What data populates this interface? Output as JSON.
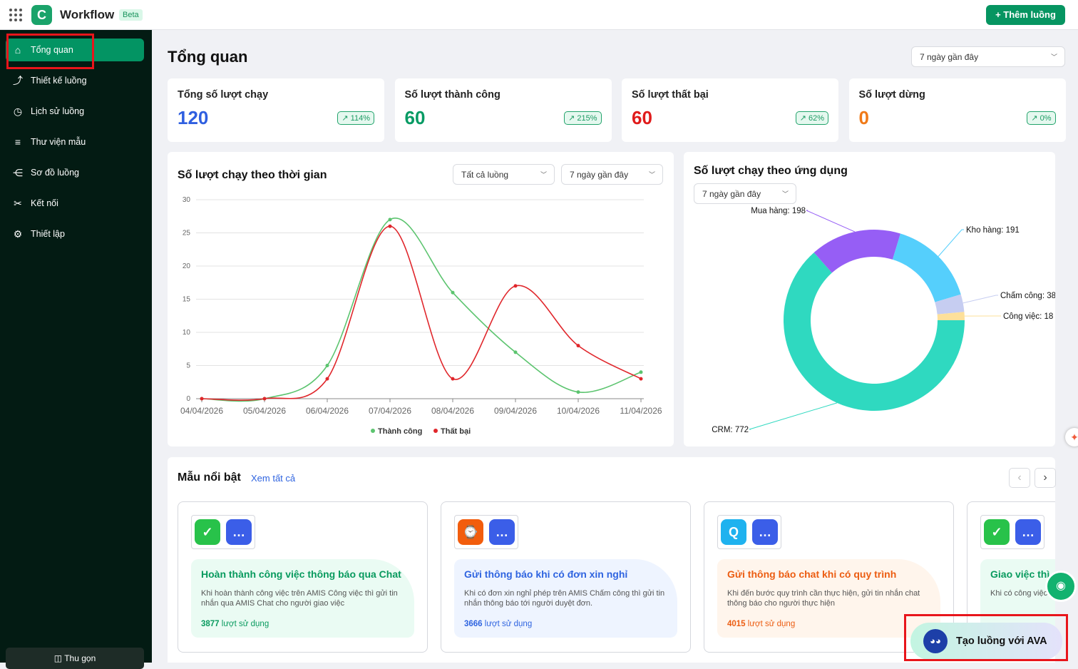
{
  "header": {
    "brand": "Workflow",
    "beta": "Beta",
    "add_button": "+ Thêm luồng",
    "logo_letter": "C"
  },
  "sidebar": {
    "items": [
      {
        "label": "Tổng quan",
        "icon": "home-icon",
        "active": true
      },
      {
        "label": "Thiết kế luồng",
        "icon": "route-icon"
      },
      {
        "label": "Lịch sử luồng",
        "icon": "history-icon"
      },
      {
        "label": "Thư viện mẫu",
        "icon": "list-icon"
      },
      {
        "label": "Sơ đồ luồng",
        "icon": "share-icon"
      },
      {
        "label": "Kết nối",
        "icon": "connect-icon"
      },
      {
        "label": "Thiết lập",
        "icon": "gear-icon"
      }
    ],
    "collapse": "Thu gọn"
  },
  "page": {
    "title": "Tổng quan",
    "range": "7 ngày gần đây"
  },
  "stats": [
    {
      "label": "Tổng số lượt chạy",
      "value": "120",
      "change": "114%",
      "color": "#2f5fe0"
    },
    {
      "label": "Số lượt thành công",
      "value": "60",
      "change": "215%",
      "color": "#079b64"
    },
    {
      "label": "Số lượt thất bại",
      "value": "60",
      "change": "62%",
      "color": "#e01b1b"
    },
    {
      "label": "Số lượt dừng",
      "value": "0",
      "change": "0%",
      "color": "#f07a18"
    }
  ],
  "line_panel": {
    "title": "Số lượt chạy theo thời gian",
    "filter_flow": "Tất cả luồng",
    "filter_range": "7 ngày gần đây"
  },
  "pie_panel": {
    "title": "Số lượt chạy theo ứng dụng",
    "filter_range": "7 ngày gần đây"
  },
  "chart_data": [
    {
      "type": "line",
      "categories": [
        "04/04/2026",
        "05/04/2026",
        "06/04/2026",
        "07/04/2026",
        "08/04/2026",
        "09/04/2026",
        "10/04/2026",
        "11/04/2026"
      ],
      "ylim": [
        0,
        30
      ],
      "yticks": [
        0,
        5,
        10,
        15,
        20,
        25,
        30
      ],
      "grid": true,
      "legend": "bottom",
      "series": [
        {
          "name": "Thành công",
          "color": "#5cc46f",
          "values": [
            0,
            0,
            5,
            27,
            16,
            7,
            1,
            4
          ]
        },
        {
          "name": "Thất bại",
          "color": "#e0262b",
          "values": [
            0,
            0,
            3,
            26,
            3,
            17,
            8,
            3
          ]
        }
      ]
    },
    {
      "type": "pie",
      "donut": true,
      "slices": [
        {
          "label": "CRM",
          "value": 772,
          "color": "#2fd9c0"
        },
        {
          "label": "Mua hàng",
          "value": 198,
          "color": "#965ef5"
        },
        {
          "label": "Kho hàng",
          "value": 191,
          "color": "#55cffc"
        },
        {
          "label": "Chấm công",
          "value": 38,
          "color": "#c6cdf1"
        },
        {
          "label": "Công việc",
          "value": 18,
          "color": "#fde09a"
        }
      ]
    }
  ],
  "featured": {
    "title": "Mẫu nổi bật",
    "see_all": "Xem tất cả",
    "prev": "‹",
    "next": "›",
    "templates": [
      {
        "title": "Hoàn thành công việc thông báo qua Chat",
        "desc": "Khi hoàn thành công việc trên AMIS Công việc thì gửi tin nhắn qua AMIS Chat cho người giao việc",
        "count": "3877",
        "unit": "lượt sử dụng",
        "color": "#089a5e",
        "bg": "#eafbf3",
        "icons": [
          "check-app-icon",
          "chat-app-icon"
        ]
      },
      {
        "title": "Gửi thông báo khi có đơn xin nghỉ",
        "desc": "Khi có đơn xin nghỉ phép trên AMIS Chấm công thì gửi tin nhắn thông báo tới người duyệt đơn.",
        "count": "3666",
        "unit": "lượt sử dụng",
        "color": "#2f64e0",
        "bg": "#eef4ff",
        "icons": [
          "timekeeping-app-icon",
          "chat-app-icon"
        ]
      },
      {
        "title": "Gửi thông báo chat khi có quy trình",
        "desc": "Khi đến bước quy trình cần thực hiện, gửi tin nhắn chat thông báo cho người thực hiện",
        "count": "4015",
        "unit": "lượt sử dụng",
        "color": "#ec5d12",
        "bg": "#fff5ec",
        "icons": [
          "process-app-icon",
          "chat-app-icon"
        ]
      },
      {
        "title": "Giao việc thì",
        "desc": "Khi có công việc tới người thực hiện",
        "count": "",
        "unit": "",
        "color": "#089a5e",
        "bg": "#eafbf3",
        "icons": [
          "check-app-icon",
          "chat-app-icon"
        ]
      }
    ]
  },
  "ava": {
    "label": "Tạo luồng với AVA"
  }
}
